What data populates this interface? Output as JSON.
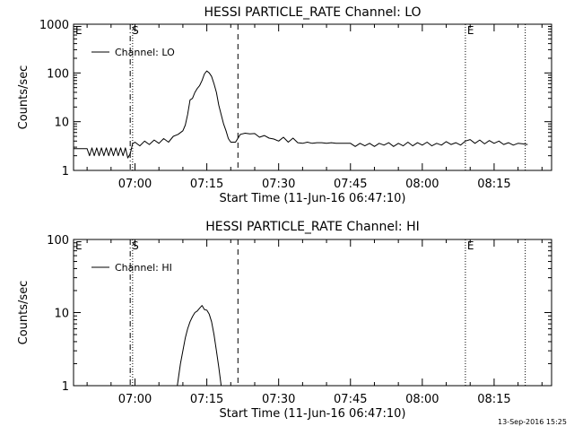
{
  "chart_data": [
    {
      "type": "line",
      "title": "HESSI PARTICLE_RATE Channel: LO",
      "xlabel": "Start Time (11-Jun-16 06:47:10)",
      "ylabel": "Counts/sec",
      "yscale": "log",
      "ylim": [
        1,
        1000
      ],
      "xlim": [
        "06:47:10",
        "08:27:00"
      ],
      "xticks": [
        "07:00",
        "07:15",
        "07:30",
        "07:45",
        "08:00",
        "08:15"
      ],
      "yticks": [
        "1",
        "10",
        "100",
        "1000"
      ],
      "legend": {
        "position": "top-left",
        "entries": [
          "Channel: LO"
        ]
      },
      "markers": [
        {
          "label": "E",
          "time": "06:47:10",
          "style": "dotted"
        },
        {
          "label": "S",
          "time": "06:59:00",
          "style": "dashdot"
        },
        {
          "label": "",
          "time": "06:59:30",
          "style": "dotted"
        },
        {
          "label": "",
          "time": "07:21:30",
          "style": "dashed"
        },
        {
          "label": "E",
          "time": "08:09:00",
          "style": "dotted"
        },
        {
          "label": "",
          "time": "08:21:30",
          "style": "dotted"
        }
      ],
      "series": [
        {
          "name": "Channel: LO",
          "x": [
            "06:47:10",
            "06:50:00",
            "06:50:30",
            "06:51:00",
            "06:51:30",
            "06:52:00",
            "06:52:30",
            "06:53:00",
            "06:53:30",
            "06:54:00",
            "06:54:30",
            "06:55:00",
            "06:55:30",
            "06:56:00",
            "06:56:30",
            "06:57:00",
            "06:57:30",
            "06:58:00",
            "06:58:30",
            "06:59:00",
            "06:59:30",
            "07:00:00",
            "07:01:00",
            "07:02:00",
            "07:03:00",
            "07:04:00",
            "07:05:00",
            "07:06:00",
            "07:07:00",
            "07:08:00",
            "07:09:00",
            "07:10:00",
            "07:10:30",
            "07:11:00",
            "07:11:30",
            "07:12:00",
            "07:12:30",
            "07:13:00",
            "07:13:30",
            "07:14:00",
            "07:14:30",
            "07:15:00",
            "07:15:30",
            "07:16:00",
            "07:16:30",
            "07:17:00",
            "07:17:30",
            "07:18:00",
            "07:18:30",
            "07:19:00",
            "07:19:30",
            "07:20:00",
            "07:21:00",
            "07:22:00",
            "07:23:00",
            "07:24:00",
            "07:25:00",
            "07:26:00",
            "07:27:00",
            "07:28:00",
            "07:29:00",
            "07:30:00",
            "07:31:00",
            "07:32:00",
            "07:33:00",
            "07:34:00",
            "07:35:00",
            "07:36:00",
            "07:37:00",
            "07:38:00",
            "07:39:00",
            "07:40:00",
            "07:41:00",
            "07:42:00",
            "07:43:00",
            "07:44:00",
            "07:45:00",
            "07:46:00",
            "07:47:00",
            "07:48:00",
            "07:49:00",
            "07:50:00",
            "07:51:00",
            "07:52:00",
            "07:53:00",
            "07:54:00",
            "07:55:00",
            "07:56:00",
            "07:57:00",
            "07:58:00",
            "07:59:00",
            "08:00:00",
            "08:01:00",
            "08:02:00",
            "08:03:00",
            "08:04:00",
            "08:05:00",
            "08:06:00",
            "08:07:00",
            "08:08:00",
            "08:09:00",
            "08:10:00",
            "08:11:00",
            "08:12:00",
            "08:13:00",
            "08:14:00",
            "08:15:00",
            "08:16:00",
            "08:17:00",
            "08:18:00",
            "08:19:00",
            "08:20:00",
            "08:21:00",
            "08:22:00"
          ],
          "y": [
            2.8,
            2.8,
            2.0,
            2.9,
            2.0,
            2.9,
            2.0,
            2.9,
            2.0,
            2.9,
            2.0,
            2.9,
            2.0,
            2.9,
            2.0,
            2.9,
            2.0,
            2.9,
            1.8,
            2.2,
            3.5,
            3.8,
            3.2,
            4.0,
            3.4,
            4.2,
            3.6,
            4.5,
            3.8,
            5.0,
            5.5,
            6.5,
            8.5,
            14,
            28,
            30,
            40,
            48,
            55,
            70,
            95,
            110,
            100,
            85,
            60,
            40,
            22,
            14,
            9,
            6.5,
            4.5,
            3.8,
            3.8,
            5.5,
            5.8,
            5.6,
            5.7,
            4.8,
            5.2,
            4.6,
            4.4,
            4.0,
            4.8,
            3.8,
            4.6,
            3.7,
            3.6,
            3.8,
            3.6,
            3.7,
            3.7,
            3.6,
            3.7,
            3.6,
            3.6,
            3.6,
            3.6,
            3.1,
            3.6,
            3.2,
            3.6,
            3.1,
            3.6,
            3.3,
            3.7,
            3.1,
            3.6,
            3.2,
            3.8,
            3.2,
            3.7,
            3.3,
            3.8,
            3.2,
            3.6,
            3.3,
            3.9,
            3.4,
            3.7,
            3.3,
            4.0,
            4.3,
            3.6,
            4.2,
            3.5,
            4.1,
            3.6,
            4.0,
            3.4,
            3.7,
            3.3,
            3.6,
            3.5,
            3.4
          ]
        }
      ]
    },
    {
      "type": "line",
      "title": "HESSI PARTICLE_RATE Channel: HI",
      "xlabel": "Start Time (11-Jun-16 06:47:10)",
      "ylabel": "Counts/sec",
      "yscale": "log",
      "ylim": [
        1,
        100
      ],
      "xlim": [
        "06:47:10",
        "08:27:00"
      ],
      "xticks": [
        "07:00",
        "07:15",
        "07:30",
        "07:45",
        "08:00",
        "08:15"
      ],
      "yticks": [
        "1",
        "10",
        "100"
      ],
      "legend": {
        "position": "top-left",
        "entries": [
          "Channel: HI"
        ]
      },
      "markers": [
        {
          "label": "E",
          "time": "06:47:10",
          "style": "dotted"
        },
        {
          "label": "S",
          "time": "06:59:00",
          "style": "dashdot"
        },
        {
          "label": "",
          "time": "06:59:30",
          "style": "dotted"
        },
        {
          "label": "",
          "time": "07:21:30",
          "style": "dashed"
        },
        {
          "label": "E",
          "time": "08:09:00",
          "style": "dotted"
        },
        {
          "label": "",
          "time": "08:21:30",
          "style": "dotted"
        }
      ],
      "series": [
        {
          "name": "Channel: HI",
          "x": [
            "07:08:50",
            "07:09:30",
            "07:10:00",
            "07:10:30",
            "07:11:00",
            "07:11:30",
            "07:12:00",
            "07:12:30",
            "07:13:00",
            "07:13:30",
            "07:14:00",
            "07:14:30",
            "07:15:00",
            "07:15:30",
            "07:16:00",
            "07:16:30",
            "07:17:00",
            "07:17:30",
            "07:18:00"
          ],
          "y": [
            1.0,
            2.0,
            3.0,
            4.5,
            6.0,
            7.5,
            8.8,
            10,
            10.5,
            11.5,
            12.5,
            11,
            10.8,
            9.5,
            7.5,
            5,
            3,
            1.8,
            1.0
          ]
        }
      ]
    }
  ],
  "footer": {
    "timestamp": "13-Sep-2016 15:25"
  }
}
